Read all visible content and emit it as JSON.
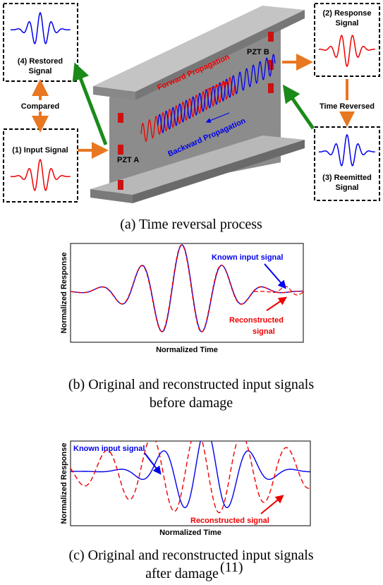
{
  "panel_a": {
    "restored_label": [
      "(4) Restored",
      "Signal"
    ],
    "compared": "Compared",
    "input_label": "(1) Input Signal",
    "pzt_a": "PZT A",
    "pzt_b": "PZT B",
    "forward": "Forward Propagation",
    "backward": "Backward Propagation",
    "response_label": [
      "(2) Response",
      "Signal"
    ],
    "time_reversed": "Time Reversed",
    "reemitted_label": [
      "(3) Reemitted",
      "Signal"
    ],
    "caption": "(a) Time reversal process"
  },
  "panel_b": {
    "y_label": "Normalized Response",
    "x_label": "Normalized Time",
    "known": "Known input signal",
    "reconstructed": [
      "Reconstructed",
      "signal"
    ],
    "caption": [
      "(b) Original and reconstructed input signals",
      "before damage"
    ]
  },
  "panel_c": {
    "y_label": "Normalized Response",
    "x_label": "Normalized Time",
    "known": "Known input signal",
    "reconstructed": "Reconstructed signal",
    "caption": [
      "(c) Original and reconstructed input signals",
      "after damage"
    ],
    "reference": "(11)"
  }
}
